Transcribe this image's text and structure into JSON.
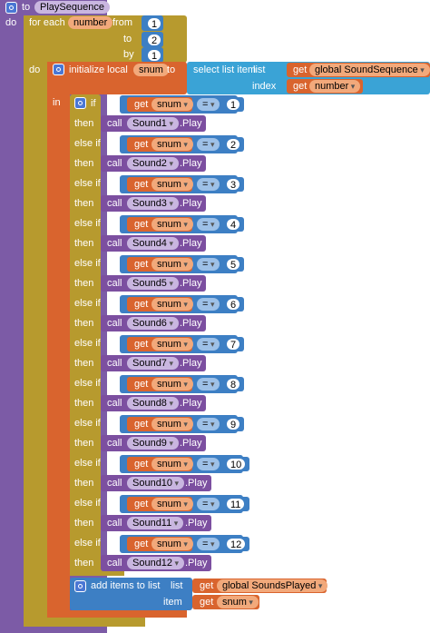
{
  "procedure": {
    "keyword": "to",
    "name": "PlaySequence",
    "do_label": "do"
  },
  "loop": {
    "keyword": "for each",
    "var": "number",
    "from_label": "from",
    "from": "1",
    "to_label": "to",
    "to": "2",
    "by_label": "by",
    "by": "1",
    "do_label": "do"
  },
  "local": {
    "label": "initialize local",
    "var": "snum",
    "to_label": "to",
    "in_label": "in",
    "select_label": "select list item",
    "list_label": "list",
    "index_label": "index",
    "get_label": "get",
    "list_var": "global SoundSequence",
    "index_var": "number"
  },
  "branches": [
    {
      "kw": "if",
      "get": "get",
      "var": "snum",
      "op": "=",
      "num": "1",
      "then": "then",
      "call": "call",
      "comp": "Sound1",
      "method": ".Play"
    },
    {
      "kw": "else if",
      "get": "get",
      "var": "snum",
      "op": "=",
      "num": "2",
      "then": "then",
      "call": "call",
      "comp": "Sound2",
      "method": ".Play"
    },
    {
      "kw": "else if",
      "get": "get",
      "var": "snum",
      "op": "=",
      "num": "3",
      "then": "then",
      "call": "call",
      "comp": "Sound3",
      "method": ".Play"
    },
    {
      "kw": "else if",
      "get": "get",
      "var": "snum",
      "op": "=",
      "num": "4",
      "then": "then",
      "call": "call",
      "comp": "Sound4",
      "method": ".Play"
    },
    {
      "kw": "else if",
      "get": "get",
      "var": "snum",
      "op": "=",
      "num": "5",
      "then": "then",
      "call": "call",
      "comp": "Sound5",
      "method": ".Play"
    },
    {
      "kw": "else if",
      "get": "get",
      "var": "snum",
      "op": "=",
      "num": "6",
      "then": "then",
      "call": "call",
      "comp": "Sound6",
      "method": ".Play"
    },
    {
      "kw": "else if",
      "get": "get",
      "var": "snum",
      "op": "=",
      "num": "7",
      "then": "then",
      "call": "call",
      "comp": "Sound7",
      "method": ".Play"
    },
    {
      "kw": "else if",
      "get": "get",
      "var": "snum",
      "op": "=",
      "num": "8",
      "then": "then",
      "call": "call",
      "comp": "Sound8",
      "method": ".Play"
    },
    {
      "kw": "else if",
      "get": "get",
      "var": "snum",
      "op": "=",
      "num": "9",
      "then": "then",
      "call": "call",
      "comp": "Sound9",
      "method": ".Play"
    },
    {
      "kw": "else if",
      "get": "get",
      "var": "snum",
      "op": "=",
      "num": "10",
      "then": "then",
      "call": "call",
      "comp": "Sound10",
      "method": ".Play"
    },
    {
      "kw": "else if",
      "get": "get",
      "var": "snum",
      "op": "=",
      "num": "11",
      "then": "then",
      "call": "call",
      "comp": "Sound11",
      "method": ".Play"
    },
    {
      "kw": "else if",
      "get": "get",
      "var": "snum",
      "op": "=",
      "num": "12",
      "then": "then",
      "call": "call",
      "comp": "Sound12",
      "method": ".Play"
    }
  ],
  "add": {
    "label": "add items to list",
    "list_label": "list",
    "item_label": "item",
    "get_label": "get",
    "list_var": "global SoundsPlayed",
    "item_var": "snum"
  }
}
